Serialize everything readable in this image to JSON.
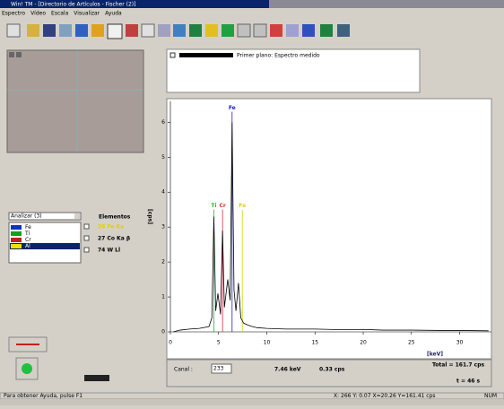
{
  "window": {
    "title": "Win! TM - [Directorio de Artículos - Fischer (2)]"
  },
  "menu": [
    "Espectro",
    "Vídeo",
    "Escala",
    "Visualizar",
    "Ayuda"
  ],
  "legend": {
    "label": "Primer plano: Espectro medido"
  },
  "analysis": {
    "dropdown": "Analizar (3)",
    "items": [
      {
        "name": "Fe",
        "color": "#1030c0"
      },
      {
        "name": "Ti",
        "color": "#10a020"
      },
      {
        "name": "Cr",
        "color": "#c02020"
      },
      {
        "name": "Al",
        "color": "#f0e000"
      }
    ],
    "elements_title": "Elementos",
    "checks": [
      "26 Fe Ka",
      "27 Co Ka β",
      "74 W Ll"
    ]
  },
  "chart_data": {
    "type": "line",
    "ylabel": "[cps]",
    "xlabel": "[keV]",
    "color": "#000000",
    "x": [
      0.3,
      1,
      2,
      3,
      4,
      4.3,
      4.51,
      4.7,
      4.93,
      5.2,
      5.41,
      5.6,
      5.95,
      6.2,
      6.4,
      6.6,
      6.8,
      7.06,
      7.3,
      7.6,
      8,
      8.5,
      9,
      10,
      12,
      15,
      18,
      20,
      22,
      25,
      28,
      30,
      33
    ],
    "values": [
      0,
      0.05,
      0.08,
      0.1,
      0.15,
      0.4,
      3.3,
      0.6,
      1.1,
      0.5,
      2.9,
      0.7,
      1.5,
      0.9,
      6.0,
      1.2,
      0.6,
      1.4,
      0.4,
      0.25,
      0.2,
      0.15,
      0.12,
      0.1,
      0.08,
      0.08,
      0.06,
      0.07,
      0.05,
      0.05,
      0.04,
      0.04,
      0.03
    ],
    "xlim": [
      0,
      33.3
    ],
    "ylim": [
      0,
      6.6
    ],
    "xticks": [
      0,
      5,
      10,
      15,
      20,
      25,
      30
    ],
    "yticks": [
      0,
      1,
      2,
      3,
      4,
      5,
      6
    ],
    "element_lines": [
      {
        "label": "Ti",
        "x": 4.51,
        "height": 3.5,
        "color": "#20c020"
      },
      {
        "label": "Cr",
        "x": 5.41,
        "height": 3.5,
        "color": "#d03030"
      },
      {
        "label": "Fe",
        "x": 6.4,
        "height": 6.3,
        "color": "#2020c0"
      },
      {
        "label": "Fe",
        "x": 7.46,
        "height": 3.5,
        "color": "#e0d000"
      }
    ]
  },
  "info": {
    "canal_label": "Canal :",
    "canal": "233",
    "energy": "7.46 keV",
    "rate": "0.33 cps",
    "total": "Total =   161.7 cps",
    "time": "t =  46 s"
  },
  "status": {
    "help": "Para obtener Ayuda, pulse F1",
    "coords": "X: 266  Y: 0.07  X=20.26  Y=161.41 cps",
    "mode": "NUM"
  }
}
